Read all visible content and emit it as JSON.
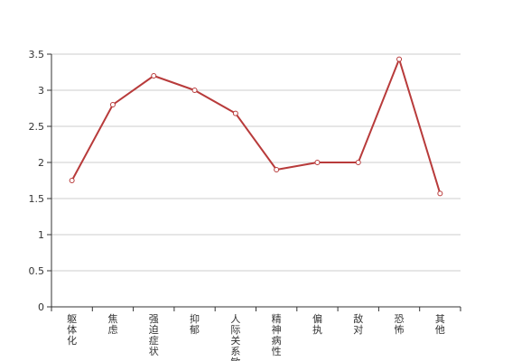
{
  "chart_data": {
    "type": "line",
    "title": "",
    "xlabel": "",
    "ylabel": "",
    "categories": [
      "躯体化",
      "焦虑",
      "强迫症状",
      "抑郁",
      "人际关系敏感",
      "精神病性",
      "偏执",
      "敌对",
      "恐怖",
      "其他"
    ],
    "series": [
      {
        "values": [
          1.75,
          2.8,
          3.2,
          3.0,
          2.68,
          1.9,
          2.0,
          2.0,
          3.43,
          1.57
        ]
      }
    ],
    "ylim": [
      0,
      3.5
    ],
    "yticks": [
      0,
      0.5,
      1,
      1.5,
      2,
      2.5,
      3,
      3.5
    ],
    "ytick_labels": [
      "0",
      "0.5",
      "1",
      "1.5",
      "2",
      "2.5",
      "3",
      "3.5"
    ],
    "grid": true,
    "legend": "none",
    "colors": {
      "line": "#b83b3b",
      "grid": "#cccccc",
      "axis": "#333333"
    }
  }
}
